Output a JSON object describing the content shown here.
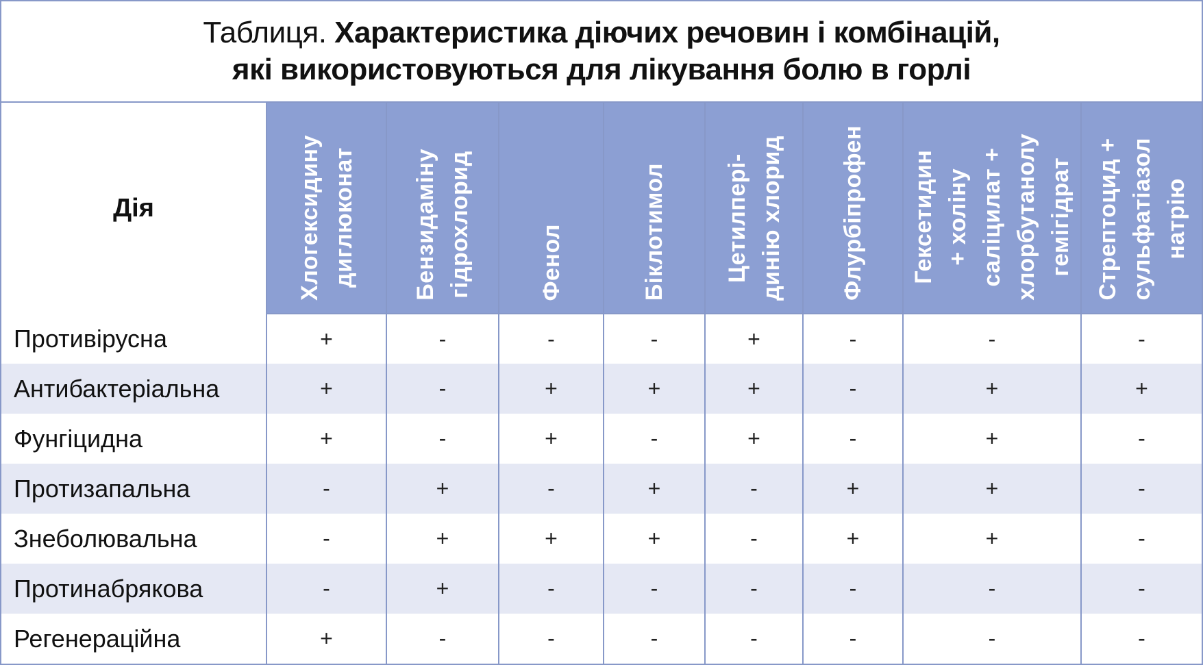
{
  "title": {
    "prefix": "Таблиця.",
    "line1": "Характеристика діючих речовин і комбінацій,",
    "line2": "які використовуються для лікування болю в горлі"
  },
  "table": {
    "corner": "Дія",
    "columns": [
      "Хлогексидину\nдиглюконат",
      "Бензидаміну\nгідрохлорид",
      "Фенол",
      "Біклотимол",
      "Цетилпері-\nдинію хлорид",
      "Флурбіпрофен",
      "Гексетидин\n+ холіну\nсаліцилат +\nхлорбутанолу\nгемігідрат",
      "Стрептоцид +\nсульфатіазол\nнатрію"
    ],
    "rows": [
      {
        "label": "Противірусна",
        "values": [
          "+",
          "-",
          "-",
          "-",
          "+",
          "-",
          "-",
          "-"
        ]
      },
      {
        "label": "Антибактеріальна",
        "values": [
          "+",
          "-",
          "+",
          "+",
          "+",
          "-",
          "+",
          "+"
        ]
      },
      {
        "label": "Фунгіцидна",
        "values": [
          "+",
          "-",
          "+",
          "-",
          "+",
          "-",
          "+",
          "-"
        ]
      },
      {
        "label": "Протизапальна",
        "values": [
          "-",
          "+",
          "-",
          "+",
          "-",
          "+",
          "+",
          "-"
        ]
      },
      {
        "label": "Знеболювальна",
        "values": [
          "-",
          "+",
          "+",
          "+",
          "-",
          "+",
          "+",
          "-"
        ]
      },
      {
        "label": "Протинабрякова",
        "values": [
          "-",
          "+",
          "-",
          "-",
          "-",
          "-",
          "-",
          "-"
        ]
      },
      {
        "label": "Регенераційна",
        "values": [
          "+",
          "-",
          "-",
          "-",
          "-",
          "-",
          "-",
          "-"
        ]
      }
    ]
  },
  "colors": {
    "header_fill": "#8c9fd3",
    "border": "#8798c8",
    "stripe": "#e5e8f4"
  }
}
